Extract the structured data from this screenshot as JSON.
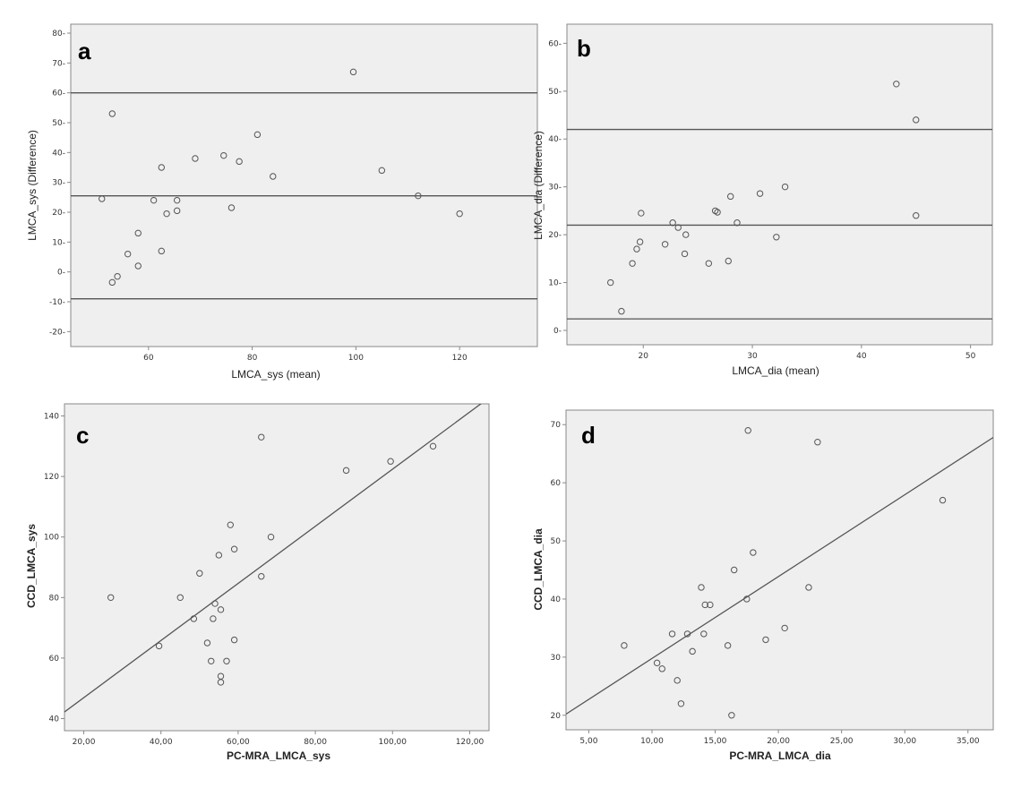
{
  "colors": {
    "plot_bg": "#efefef",
    "frame": "#888888",
    "line": "#555555",
    "point": "#555555"
  },
  "chart_data": [
    {
      "id": "a",
      "type": "scatter",
      "panel_label": "a",
      "xlabel": "LMCA_sys (mean)",
      "ylabel": "LMCA_sys (Difference)",
      "xlim": [
        45,
        135
      ],
      "ylim": [
        -25,
        83
      ],
      "xticks": [
        60,
        80,
        100,
        120
      ],
      "xtick_labels": [
        "60",
        "80",
        "100",
        "120"
      ],
      "yticks": [
        -20,
        -10,
        0,
        10,
        20,
        30,
        40,
        50,
        60,
        70,
        80
      ],
      "ytick_labels": [
        "-20-",
        "-10-",
        "0-",
        "10-",
        "20-",
        "30-",
        "40-",
        "50-",
        "60-",
        "70-",
        "80-"
      ],
      "hlines": [
        60,
        25.5,
        -9
      ],
      "points": [
        {
          "x": 51,
          "y": 24.5
        },
        {
          "x": 53,
          "y": 53
        },
        {
          "x": 53,
          "y": -3.5
        },
        {
          "x": 54,
          "y": -1.5
        },
        {
          "x": 56,
          "y": 6
        },
        {
          "x": 58,
          "y": 13
        },
        {
          "x": 58,
          "y": 2
        },
        {
          "x": 61,
          "y": 24
        },
        {
          "x": 62.5,
          "y": 35
        },
        {
          "x": 62.5,
          "y": 7
        },
        {
          "x": 63.5,
          "y": 19.5
        },
        {
          "x": 65.5,
          "y": 20.5
        },
        {
          "x": 65.5,
          "y": 24
        },
        {
          "x": 69,
          "y": 38
        },
        {
          "x": 74.5,
          "y": 39
        },
        {
          "x": 76,
          "y": 21.5
        },
        {
          "x": 77.5,
          "y": 37
        },
        {
          "x": 81,
          "y": 46
        },
        {
          "x": 84,
          "y": 32
        },
        {
          "x": 99.5,
          "y": 67
        },
        {
          "x": 105,
          "y": 34
        },
        {
          "x": 112,
          "y": 25.5
        },
        {
          "x": 120,
          "y": 19.5
        }
      ]
    },
    {
      "id": "b",
      "type": "scatter",
      "panel_label": "b",
      "xlabel": "LMCA_dia (mean)",
      "ylabel": "LMCA_dia (Difference)",
      "xlim": [
        13,
        52
      ],
      "ylim": [
        -3,
        64
      ],
      "xticks": [
        20,
        30,
        40,
        50
      ],
      "xtick_labels": [
        "20",
        "30",
        "40",
        "50"
      ],
      "yticks": [
        0,
        10,
        20,
        30,
        40,
        50,
        60
      ],
      "ytick_labels": [
        "0-",
        "10-",
        "20-",
        "30-",
        "40-",
        "50-",
        "60-"
      ],
      "hlines": [
        42,
        22,
        2.4
      ],
      "points": [
        {
          "x": 17,
          "y": 10
        },
        {
          "x": 18,
          "y": 4
        },
        {
          "x": 19,
          "y": 14
        },
        {
          "x": 19.4,
          "y": 17
        },
        {
          "x": 19.7,
          "y": 18.5
        },
        {
          "x": 19.8,
          "y": 24.5
        },
        {
          "x": 22,
          "y": 18
        },
        {
          "x": 22.7,
          "y": 22.5
        },
        {
          "x": 23.2,
          "y": 21.5
        },
        {
          "x": 23.8,
          "y": 16
        },
        {
          "x": 23.9,
          "y": 20
        },
        {
          "x": 26,
          "y": 14
        },
        {
          "x": 26.6,
          "y": 25
        },
        {
          "x": 26.8,
          "y": 24.7
        },
        {
          "x": 27.8,
          "y": 14.5
        },
        {
          "x": 28,
          "y": 28
        },
        {
          "x": 28.6,
          "y": 22.5
        },
        {
          "x": 30.7,
          "y": 28.6
        },
        {
          "x": 32.2,
          "y": 19.5
        },
        {
          "x": 33,
          "y": 30
        },
        {
          "x": 43.2,
          "y": 51.5
        },
        {
          "x": 45,
          "y": 44
        },
        {
          "x": 45,
          "y": 24
        }
      ]
    },
    {
      "id": "c",
      "type": "scatter",
      "panel_label": "c",
      "xlabel": "PC-MRA_LMCA_sys",
      "ylabel": "CCD_LMCA_sys",
      "xlim": [
        15,
        125
      ],
      "ylim": [
        36,
        144
      ],
      "xticks": [
        20,
        40,
        60,
        80,
        100,
        120
      ],
      "xtick_labels": [
        "20,00",
        "40,00",
        "60,00",
        "80,00",
        "100,00",
        "120,00"
      ],
      "yticks": [
        40,
        60,
        80,
        100,
        120,
        140
      ],
      "ytick_labels": [
        "40",
        "60",
        "80",
        "100",
        "120",
        "140"
      ],
      "fit_line": {
        "x": [
          15,
          125
        ],
        "y": [
          42.2,
          146
        ]
      },
      "points": [
        {
          "x": 27,
          "y": 80
        },
        {
          "x": 39.5,
          "y": 64
        },
        {
          "x": 45,
          "y": 80
        },
        {
          "x": 48.5,
          "y": 73
        },
        {
          "x": 50,
          "y": 88
        },
        {
          "x": 52,
          "y": 65
        },
        {
          "x": 53,
          "y": 59
        },
        {
          "x": 53.5,
          "y": 73
        },
        {
          "x": 54,
          "y": 78
        },
        {
          "x": 55,
          "y": 94
        },
        {
          "x": 55.5,
          "y": 76
        },
        {
          "x": 55.5,
          "y": 54
        },
        {
          "x": 55.5,
          "y": 52
        },
        {
          "x": 57,
          "y": 59
        },
        {
          "x": 58,
          "y": 104
        },
        {
          "x": 59,
          "y": 96
        },
        {
          "x": 59,
          "y": 66
        },
        {
          "x": 66,
          "y": 133
        },
        {
          "x": 66,
          "y": 87
        },
        {
          "x": 68.5,
          "y": 100
        },
        {
          "x": 88,
          "y": 122
        },
        {
          "x": 99.5,
          "y": 125
        },
        {
          "x": 110.5,
          "y": 130
        }
      ]
    },
    {
      "id": "d",
      "type": "scatter",
      "panel_label": "d",
      "xlabel": "PC-MRA_LMCA_dia",
      "ylabel": "CCD_LMCA_dia",
      "xlim": [
        3.2,
        37
      ],
      "ylim": [
        17.5,
        72.5
      ],
      "xticks": [
        5,
        10,
        15,
        20,
        25,
        30,
        35
      ],
      "xtick_labels": [
        "5,00",
        "10,00",
        "15,00",
        "20,00",
        "25,00",
        "30,00",
        "35,00"
      ],
      "yticks": [
        20,
        30,
        40,
        50,
        60,
        70
      ],
      "ytick_labels": [
        "20",
        "30",
        "40",
        "50",
        "60",
        "70"
      ],
      "fit_line": {
        "x": [
          3.2,
          37
        ],
        "y": [
          20.2,
          67.8
        ]
      },
      "points": [
        {
          "x": 7.8,
          "y": 32
        },
        {
          "x": 10.4,
          "y": 29
        },
        {
          "x": 10.8,
          "y": 28
        },
        {
          "x": 11.6,
          "y": 34
        },
        {
          "x": 12,
          "y": 26
        },
        {
          "x": 12.3,
          "y": 22
        },
        {
          "x": 12.8,
          "y": 34
        },
        {
          "x": 13.2,
          "y": 31
        },
        {
          "x": 13.9,
          "y": 42
        },
        {
          "x": 14.1,
          "y": 34
        },
        {
          "x": 14.2,
          "y": 39
        },
        {
          "x": 14.6,
          "y": 39
        },
        {
          "x": 16,
          "y": 32
        },
        {
          "x": 16.3,
          "y": 20
        },
        {
          "x": 16.5,
          "y": 45
        },
        {
          "x": 17.5,
          "y": 40
        },
        {
          "x": 17.6,
          "y": 69
        },
        {
          "x": 18,
          "y": 48
        },
        {
          "x": 19,
          "y": 33
        },
        {
          "x": 20.5,
          "y": 35
        },
        {
          "x": 22.4,
          "y": 42
        },
        {
          "x": 23.1,
          "y": 67
        },
        {
          "x": 33,
          "y": 57
        }
      ]
    }
  ]
}
